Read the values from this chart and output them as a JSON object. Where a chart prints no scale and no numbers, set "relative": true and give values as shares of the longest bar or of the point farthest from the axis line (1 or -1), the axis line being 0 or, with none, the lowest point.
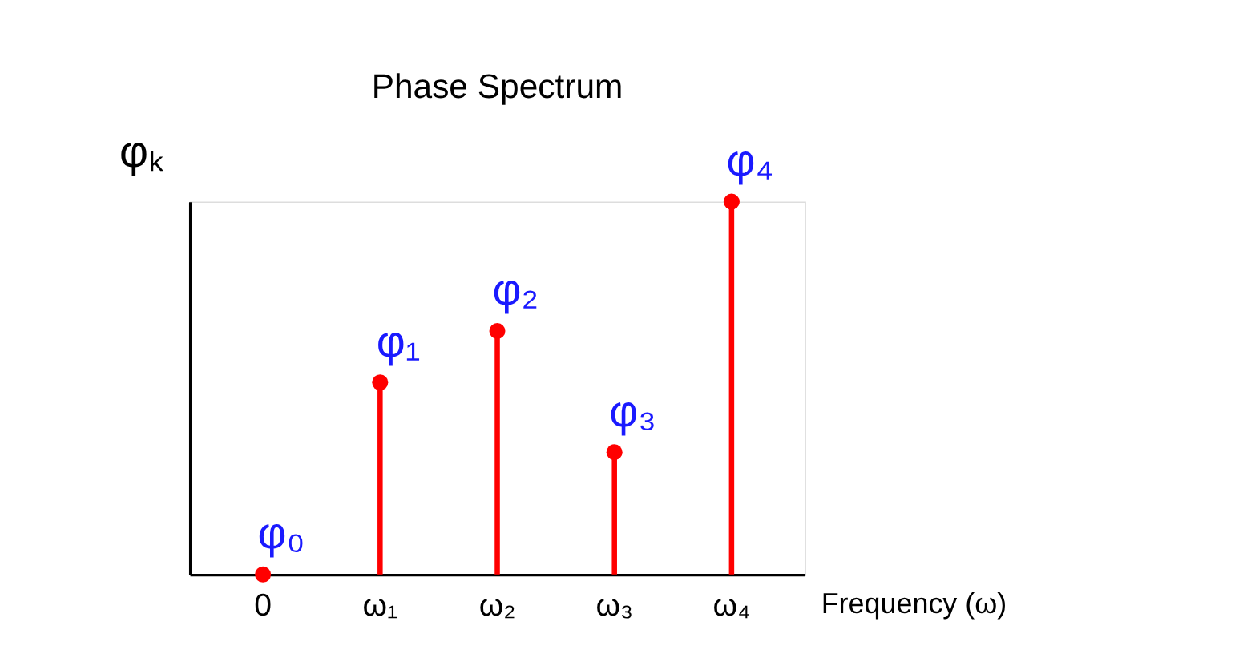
{
  "chart_data": {
    "type": "lollipop",
    "title": "Phase Spectrum",
    "xlabel": "Frequency (ω)",
    "ylabel": "φₖ",
    "categories": [
      "0",
      "ω₁",
      "ω₂",
      "ω₃",
      "ω₄"
    ],
    "values": [
      0,
      0.515,
      0.653,
      0.328,
      1
    ],
    "color": "#ff0000",
    "relative": true,
    "marker": "circle",
    "grid": false,
    "annotations": [
      {
        "text": "φ₀",
        "x": "0",
        "y": 0
      },
      {
        "text": "φ₁",
        "x": "ω₁",
        "y": 0.515
      },
      {
        "text": "φ₂",
        "x": "ω₂",
        "y": 0.653
      },
      {
        "text": "φ₃",
        "x": "ω₃",
        "y": 0.328
      },
      {
        "text": "φ₄",
        "x": "ω₄",
        "y": 1
      }
    ]
  }
}
